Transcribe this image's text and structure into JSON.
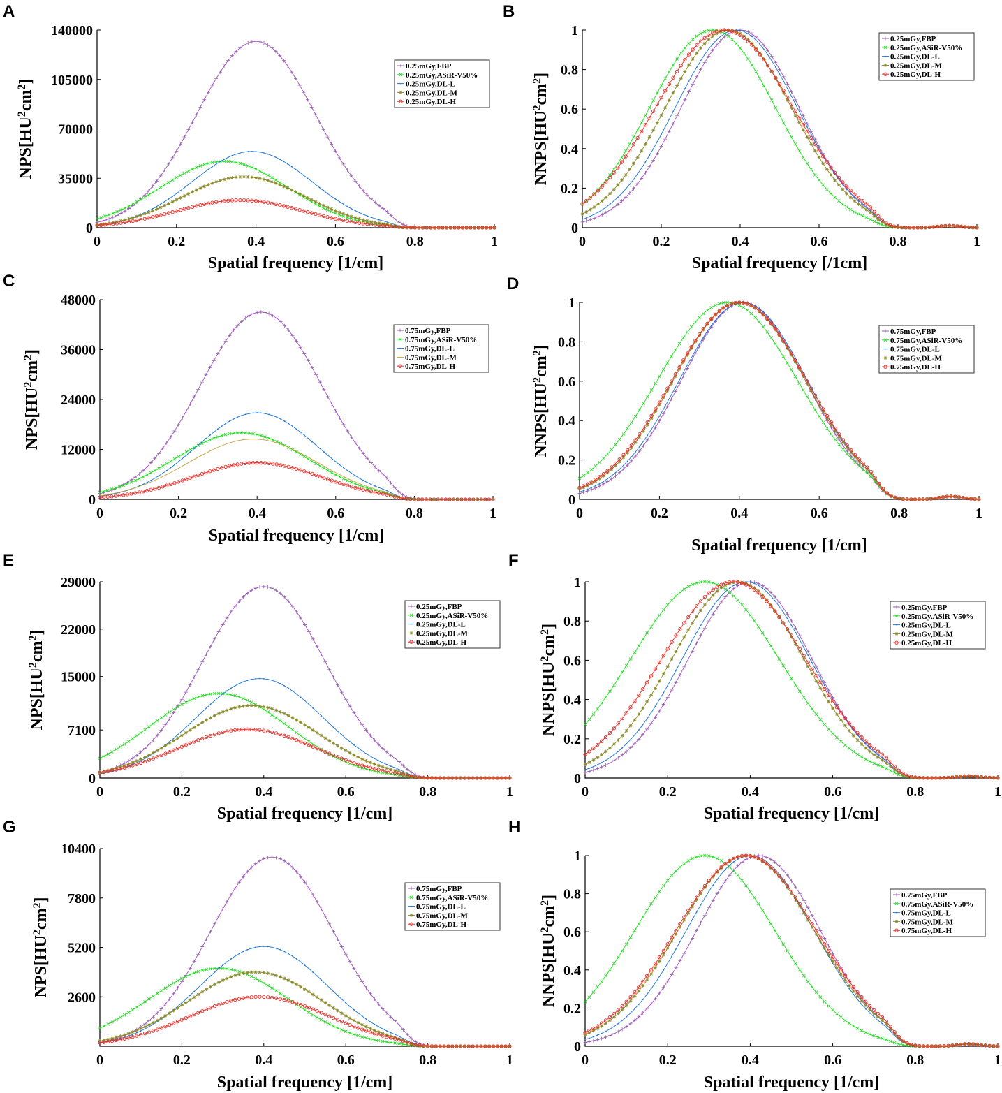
{
  "chart_data": [
    {
      "panel": "A",
      "type": "line",
      "xlabel": "Spatial frequency [1/cm]",
      "ylabel": "NPS[HU²cm²]",
      "ylabel_parts": {
        "a": "NPS[HU",
        "b": "2",
        "c": "cm",
        "d": "2",
        "e": "]"
      },
      "xlim": [
        0,
        1
      ],
      "ylim": [
        0,
        140000
      ],
      "xticks": [
        0,
        0.2,
        0.4,
        0.6,
        0.8,
        1
      ],
      "xtick_labels": [
        "0",
        "0.2",
        "0.4",
        "0.6",
        "0.8",
        "1"
      ],
      "yticks": [
        0,
        35000,
        70000,
        105000,
        140000
      ],
      "ytick_labels": [
        "0",
        "35000",
        "70000",
        "105000",
        "140000"
      ],
      "legend_position": "top-right",
      "series": [
        {
          "name": "0.25mGy,FBP",
          "color": "#9b59b6",
          "marker": "plus",
          "peak_x": 0.4,
          "peak_y": 132000,
          "width": 0.15,
          "tail": 0
        },
        {
          "name": "0.25mGy,ASiR-V50%",
          "color": "#22dd22",
          "marker": "x",
          "peak_x": 0.32,
          "peak_y": 47000,
          "width": 0.16,
          "tail": 0
        },
        {
          "name": "0.25mGy,DL-L",
          "color": "#1f77d4",
          "marker": "dot",
          "peak_x": 0.39,
          "peak_y": 54000,
          "width": 0.15,
          "tail": 0
        },
        {
          "name": "0.25mGy,DL-M",
          "color": "#8a8a2a",
          "marker": "star",
          "peak_x": 0.37,
          "peak_y": 36000,
          "width": 0.155,
          "tail": 0
        },
        {
          "name": "0.25mGy,DL-H",
          "color": "#e8302a",
          "marker": "circle",
          "peak_x": 0.36,
          "peak_y": 19500,
          "width": 0.16,
          "tail": 0
        }
      ]
    },
    {
      "panel": "B",
      "type": "line",
      "xlabel": "Spatial frequency [/1cm]",
      "ylabel": "NNPS[HU²cm²]",
      "ylabel_parts": {
        "a": "NNPS[HU",
        "b": "2",
        "c": "cm",
        "d": "2",
        "e": "]"
      },
      "xlim": [
        0,
        1
      ],
      "ylim": [
        0,
        1
      ],
      "xticks": [
        0,
        0.2,
        0.4,
        0.6,
        0.8,
        1
      ],
      "xtick_labels": [
        "0",
        "0.2",
        "0.4",
        "0.6",
        "0.8",
        "1"
      ],
      "yticks": [
        0,
        0.2,
        0.4,
        0.6,
        0.8,
        1
      ],
      "ytick_labels": [
        "0",
        "0.2",
        "0.4",
        "0.6",
        "0.8",
        "1"
      ],
      "legend_position": "top-right",
      "series": [
        {
          "name": "0.25mGy,FBP",
          "color": "#9b59b6",
          "marker": "plus",
          "peak_x": 0.4,
          "peak_y": 1,
          "width": 0.15,
          "tail": 0.01
        },
        {
          "name": "0.25mGy,ASiR-V50%",
          "color": "#22dd22",
          "marker": "x",
          "peak_x": 0.33,
          "peak_y": 1,
          "width": 0.16,
          "tail": 0.01
        },
        {
          "name": "0.25mGy,DL-L",
          "color": "#1f77d4",
          "marker": "dot",
          "peak_x": 0.39,
          "peak_y": 1,
          "width": 0.155,
          "tail": 0.01
        },
        {
          "name": "0.25mGy,DL-M",
          "color": "#8a8a2a",
          "marker": "star",
          "peak_x": 0.37,
          "peak_y": 1,
          "width": 0.16,
          "tail": 0.01
        },
        {
          "name": "0.25mGy,DL-H",
          "color": "#e8302a",
          "marker": "circle",
          "peak_x": 0.36,
          "peak_y": 1,
          "width": 0.175,
          "tail": 0.01
        }
      ]
    },
    {
      "panel": "C",
      "type": "line",
      "xlabel": "Spatial frequency [1/cm]",
      "ylabel": "NPS[HU²cm²]",
      "ylabel_parts": {
        "a": "NPS[HU",
        "b": "2",
        "c": "cm",
        "d": "2",
        "e": "]"
      },
      "xlim": [
        0,
        1
      ],
      "ylim": [
        0,
        48000
      ],
      "xticks": [
        0,
        0.2,
        0.4,
        0.6,
        0.8,
        1
      ],
      "xtick_labels": [
        "0",
        "0.2",
        "0.4",
        "0.6",
        "0.8",
        "1"
      ],
      "yticks": [
        0,
        12000,
        24000,
        36000,
        48000
      ],
      "ytick_labels": [
        "0",
        "12000",
        "24000",
        "36000",
        "48000"
      ],
      "legend_position": "top-right",
      "series": [
        {
          "name": "0.75mGy,FBP",
          "color": "#9b59b6",
          "marker": "plus",
          "peak_x": 0.41,
          "peak_y": 45000,
          "width": 0.155,
          "tail": 0
        },
        {
          "name": "0.75mGy,ASiR-V50%",
          "color": "#22dd22",
          "marker": "x",
          "peak_x": 0.36,
          "peak_y": 16000,
          "width": 0.17,
          "tail": 0
        },
        {
          "name": "0.75mGy,DL-L",
          "color": "#1f77d4",
          "marker": "dot",
          "peak_x": 0.4,
          "peak_y": 20800,
          "width": 0.155,
          "tail": 0
        },
        {
          "name": "0.75mGy,DL-M",
          "color": "#c8a040",
          "marker": "none",
          "peak_x": 0.39,
          "peak_y": 14500,
          "width": 0.165,
          "tail": 0
        },
        {
          "name": "0.75mGy,DL-H",
          "color": "#e8302a",
          "marker": "circle",
          "peak_x": 0.4,
          "peak_y": 8800,
          "width": 0.165,
          "tail": 0
        }
      ]
    },
    {
      "panel": "D",
      "type": "line",
      "xlabel": "Spatial frequency [1/cm]",
      "ylabel": "NNPS[HU²cm²]",
      "ylabel_parts": {
        "a": "NNPS[HU",
        "b": "2",
        "c": "cm",
        "d": "2",
        "e": "]"
      },
      "xlim": [
        0,
        1
      ],
      "ylim": [
        0,
        1
      ],
      "xticks": [
        0,
        0.2,
        0.4,
        0.6,
        0.8,
        1
      ],
      "xtick_labels": [
        "0",
        "0.2",
        "0.4",
        "0.6",
        "0.8",
        "1"
      ],
      "yticks": [
        0,
        0.2,
        0.4,
        0.6,
        0.8,
        1
      ],
      "ytick_labels": [
        "0",
        "0.2",
        "0.4",
        "0.6",
        "0.8",
        "1"
      ],
      "legend_position": "top-right",
      "series": [
        {
          "name": "0.75mGy,FBP",
          "color": "#9b59b6",
          "marker": "plus",
          "peak_x": 0.41,
          "peak_y": 1,
          "width": 0.155,
          "tail": 0.015
        },
        {
          "name": "0.75mGy,ASiR-V50%",
          "color": "#22dd22",
          "marker": "x",
          "peak_x": 0.37,
          "peak_y": 1,
          "width": 0.175,
          "tail": 0.015
        },
        {
          "name": "0.75mGy,DL-L",
          "color": "#1f77d4",
          "marker": "dot",
          "peak_x": 0.41,
          "peak_y": 1,
          "width": 0.16,
          "tail": 0.015
        },
        {
          "name": "0.75mGy,DL-M",
          "color": "#8a8a2a",
          "marker": "star",
          "peak_x": 0.4,
          "peak_y": 1,
          "width": 0.165,
          "tail": 0.015
        },
        {
          "name": "0.75mGy,DL-H",
          "color": "#e8302a",
          "marker": "circle",
          "peak_x": 0.4,
          "peak_y": 1,
          "width": 0.168,
          "tail": 0.015
        }
      ]
    },
    {
      "panel": "E",
      "type": "line",
      "xlabel": "Spatial frequency [1/cm]",
      "ylabel": "NPS[HU²cm²]",
      "ylabel_parts": {
        "a": "NPS[HU",
        "b": "2",
        "c": "cm",
        "d": "2",
        "e": "]"
      },
      "xlim": [
        0,
        1
      ],
      "ylim": [
        0,
        29000
      ],
      "xticks": [
        0,
        0.2,
        0.4,
        0.6,
        0.8,
        1
      ],
      "xtick_labels": [
        "0",
        "0.2",
        "0.4",
        "0.6",
        "0.8",
        "1"
      ],
      "yticks": [
        0,
        7100,
        15000,
        22000,
        29000
      ],
      "ytick_labels": [
        "0",
        "7100",
        "15000",
        "22000",
        "29000"
      ],
      "legend_position": "top-right",
      "series": [
        {
          "name": "0.25mGy,FBP",
          "color": "#9b59b6",
          "marker": "plus",
          "peak_x": 0.4,
          "peak_y": 28300,
          "width": 0.15,
          "tail": 0
        },
        {
          "name": "0.25mGy,ASiR-V50%",
          "color": "#22dd22",
          "marker": "x",
          "peak_x": 0.29,
          "peak_y": 12500,
          "width": 0.17,
          "tail": 0
        },
        {
          "name": "0.25mGy,DL-L",
          "color": "#1f77d4",
          "marker": "dot",
          "peak_x": 0.39,
          "peak_y": 14700,
          "width": 0.155,
          "tail": 0
        },
        {
          "name": "0.25mGy,DL-M",
          "color": "#8a8a2a",
          "marker": "star",
          "peak_x": 0.37,
          "peak_y": 10700,
          "width": 0.165,
          "tail": 0
        },
        {
          "name": "0.25mGy,DL-H",
          "color": "#e8302a",
          "marker": "circle",
          "peak_x": 0.36,
          "peak_y": 7200,
          "width": 0.17,
          "tail": 0
        }
      ]
    },
    {
      "panel": "F",
      "type": "line",
      "xlabel": "Spatial frequency [1/cm]",
      "ylabel": "NNPS[HU²cm²]",
      "ylabel_parts": {
        "a": "NNPS[HU",
        "b": "2",
        "c": "cm",
        "d": "2",
        "e": "]"
      },
      "xlim": [
        0,
        1
      ],
      "ylim": [
        0,
        1
      ],
      "xticks": [
        0,
        0.2,
        0.4,
        0.6,
        0.8,
        1
      ],
      "xtick_labels": [
        "0",
        "0.2",
        "0.4",
        "0.6",
        "0.8",
        "1"
      ],
      "yticks": [
        0,
        0.2,
        0.4,
        0.6,
        0.8,
        1
      ],
      "ytick_labels": [
        "0",
        "0.2",
        "0.4",
        "0.6",
        "0.8",
        "1"
      ],
      "legend_position": "top-right",
      "series": [
        {
          "name": "0.25mGy,FBP",
          "color": "#9b59b6",
          "marker": "plus",
          "peak_x": 0.4,
          "peak_y": 1,
          "width": 0.15,
          "tail": 0.01
        },
        {
          "name": "0.25mGy,ASiR-V50%",
          "color": "#22dd22",
          "marker": "x",
          "peak_x": 0.29,
          "peak_y": 1,
          "width": 0.18,
          "tail": 0.01
        },
        {
          "name": "0.25mGy,DL-L",
          "color": "#1f77d4",
          "marker": "dot",
          "peak_x": 0.39,
          "peak_y": 1,
          "width": 0.155,
          "tail": 0.01
        },
        {
          "name": "0.25mGy,DL-M",
          "color": "#8a8a2a",
          "marker": "star",
          "peak_x": 0.37,
          "peak_y": 1,
          "width": 0.16,
          "tail": 0.01
        },
        {
          "name": "0.25mGy,DL-H",
          "color": "#e8302a",
          "marker": "circle",
          "peak_x": 0.36,
          "peak_y": 1,
          "width": 0.175,
          "tail": 0.01
        }
      ]
    },
    {
      "panel": "G",
      "type": "line",
      "xlabel": "Spatial frequency [1/cm]",
      "ylabel": "NPS[HU²cm²]",
      "ylabel_parts": {
        "a": "NPS[HU",
        "b": "2",
        "c": "cm",
        "d": "2",
        "e": "]"
      },
      "xlim": [
        0,
        1
      ],
      "ylim": [
        0,
        10400
      ],
      "xticks": [
        0,
        0.2,
        0.4,
        0.6,
        0.8,
        1
      ],
      "xtick_labels": [
        "0",
        "0.2",
        "0.4",
        "0.6",
        "0.8",
        "1"
      ],
      "yticks": [
        2600,
        5200,
        7800,
        10400
      ],
      "ytick_labels": [
        "2600",
        "5200",
        "7800",
        "10400"
      ],
      "legend_position": "top-right",
      "series": [
        {
          "name": "0.75mGy,FBP",
          "color": "#9b59b6",
          "marker": "plus",
          "peak_x": 0.42,
          "peak_y": 9950,
          "width": 0.15,
          "tail": 0
        },
        {
          "name": "0.75mGy,ASiR-V50%",
          "color": "#22dd22",
          "marker": "x",
          "peak_x": 0.29,
          "peak_y": 4100,
          "width": 0.17,
          "tail": 0
        },
        {
          "name": "0.75mGy,DL-L",
          "color": "#1f77d4",
          "marker": "dot",
          "peak_x": 0.4,
          "peak_y": 5250,
          "width": 0.155,
          "tail": 0
        },
        {
          "name": "0.75mGy,DL-M",
          "color": "#8a8a2a",
          "marker": "star",
          "peak_x": 0.38,
          "peak_y": 3900,
          "width": 0.165,
          "tail": 0
        },
        {
          "name": "0.75mGy,DL-H",
          "color": "#e8302a",
          "marker": "circle",
          "peak_x": 0.39,
          "peak_y": 2600,
          "width": 0.17,
          "tail": 0
        }
      ]
    },
    {
      "panel": "H",
      "type": "line",
      "xlabel": "Spatial frequency [1/cm]",
      "ylabel": "NNPS[HU²cm²]",
      "ylabel_parts": {
        "a": "NNPS[HU",
        "b": "2",
        "c": "cm",
        "d": "2",
        "e": "]"
      },
      "xlim": [
        0,
        1
      ],
      "ylim": [
        0,
        1
      ],
      "xticks": [
        0,
        0.2,
        0.4,
        0.6,
        0.8,
        1
      ],
      "xtick_labels": [
        "0",
        "0.2",
        "0.4",
        "0.6",
        "0.8",
        "1"
      ],
      "yticks": [
        0,
        0.2,
        0.4,
        0.6,
        0.8,
        1
      ],
      "ytick_labels": [
        "0",
        "0.2",
        "0.4",
        "0.6",
        "0.8",
        "1"
      ],
      "legend_position": "top-right",
      "series": [
        {
          "name": "0.75mGy,FBP",
          "color": "#9b59b6",
          "marker": "plus",
          "peak_x": 0.42,
          "peak_y": 1,
          "width": 0.15,
          "tail": 0.012
        },
        {
          "name": "0.75mGy,ASiR-V50%",
          "color": "#22dd22",
          "marker": "x",
          "peak_x": 0.29,
          "peak_y": 1,
          "width": 0.17,
          "tail": 0.012
        },
        {
          "name": "0.75mGy,DL-L",
          "color": "#1f77d4",
          "marker": "dot",
          "peak_x": 0.4,
          "peak_y": 1,
          "width": 0.155,
          "tail": 0.012
        },
        {
          "name": "0.75mGy,DL-M",
          "color": "#8a8a2a",
          "marker": "star",
          "peak_x": 0.39,
          "peak_y": 1,
          "width": 0.165,
          "tail": 0.012
        },
        {
          "name": "0.75mGy,DL-H",
          "color": "#e8302a",
          "marker": "circle",
          "peak_x": 0.39,
          "peak_y": 1,
          "width": 0.17,
          "tail": 0.012
        }
      ]
    }
  ]
}
